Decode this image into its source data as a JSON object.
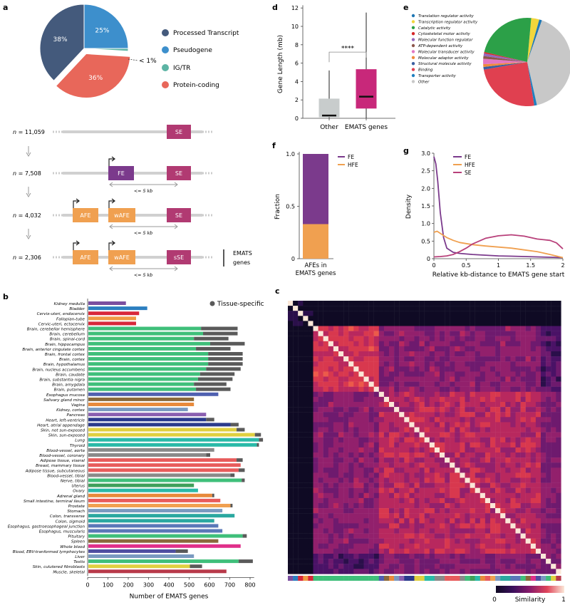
{
  "panels": {
    "a": "a",
    "b": "b",
    "c": "c",
    "d": "d",
    "e": "e",
    "f": "f",
    "g": "g"
  },
  "panel_a": {
    "pie": {
      "slices": [
        {
          "label": "Processed Transcript",
          "pct_text": "38%",
          "value": 38,
          "color": "#445a7c"
        },
        {
          "label": "Pseudogene",
          "pct_text": "25%",
          "value": 25,
          "color": "#3d8fcc"
        },
        {
          "label": "IG/TR",
          "pct_text": "< 1%",
          "value": 1,
          "color": "#5cb4a4"
        },
        {
          "label": "Protein-coding",
          "pct_text": "36%",
          "value": 36,
          "color": "#e8675a"
        }
      ]
    },
    "rows": [
      {
        "n": "11,059",
        "exons": [
          "SE"
        ]
      },
      {
        "n": "7,508",
        "exons": [
          "FE",
          "SE"
        ]
      },
      {
        "n": "4,032",
        "exons": [
          "AFE",
          "wAFE",
          "SE"
        ]
      },
      {
        "n": "2,306",
        "exons": [
          "AFE",
          "wAFE",
          "sSE"
        ]
      }
    ],
    "n_prefix": "n",
    "distance_label": "<= 5 kb",
    "emats_label_1": "EMATS",
    "emats_label_2": "genes"
  },
  "panel_b": {
    "chart_data": {
      "type": "bar",
      "orientation": "horizontal",
      "xlabel": "Number of EMATS genes",
      "xlim": [
        0,
        850
      ],
      "xticks": [
        "0",
        "100",
        "200",
        "300",
        "400",
        "500",
        "600",
        "700",
        "800"
      ],
      "legend": "Tissue-specific",
      "categories": [
        "Kidney medulla",
        "Bladder",
        "Cervix-uteri, endocervix",
        "Fallopian-tube",
        "Cervic-uteri, ectocervix",
        "Brain, cerebellar hemisphere",
        "Brain, cerebellum",
        "Brain, spinal-cord",
        "Brain, hippocampus",
        "Brain, anterior cingulate cortex",
        "Brain, frontal cortex",
        "Brain, cortex",
        "Brain, hypothalamus",
        "Brain, nucleus accumbens",
        "Brain, caudate",
        "Brain, substantia nigra",
        "Brain, amygdala",
        "Brain, putamen",
        "Esophagus mucosa",
        "Salivary gland minor",
        "Vagina",
        "Kidney, cortex",
        "Pancreas",
        "Heart, left-ventricle",
        "Heart, atrial appendage",
        "Skin, not sun-exposed",
        "Skin, sun-exposed",
        "Lung",
        "Thyroid",
        "Blood-vessel, aorta",
        "Blood-vessel, coronary",
        "Adipose tissue, viseral",
        "Breast, mammary tissue",
        "Adipose tissue, subcutaneous",
        "Blood-vessel, tibial",
        "Nerve, tibial",
        "Uterus",
        "Ovary",
        "Adrenal gland",
        "Small intestine, terminal ileum",
        "Prostate",
        "Stomach",
        "Colon, transverse",
        "Colon, sigmoid",
        "Esophagus, gastroesophageal junction",
        "Esophagus, muscularis",
        "Pituitary",
        "Spleen",
        "Whole blood",
        "Blood, EBV-tranformed lymphocytes",
        "Liver",
        "Testis",
        "Skin, culutered fibroblasts",
        "Muscle, skeletal"
      ],
      "totals": [
        185,
        290,
        250,
        235,
        235,
        735,
        735,
        690,
        770,
        700,
        760,
        760,
        760,
        750,
        720,
        710,
        680,
        700,
        640,
        520,
        520,
        490,
        580,
        620,
        740,
        770,
        850,
        860,
        840,
        620,
        600,
        760,
        750,
        770,
        720,
        770,
        520,
        540,
        620,
        650,
        710,
        660,
        720,
        620,
        640,
        660,
        780,
        640,
        750,
        490,
        520,
        810,
        560,
        680
      ],
      "tissue_specific": [
        0,
        0,
        0,
        0,
        0,
        180,
        170,
        170,
        170,
        170,
        170,
        170,
        170,
        170,
        170,
        170,
        160,
        170,
        0,
        0,
        0,
        0,
        0,
        40,
        40,
        40,
        30,
        20,
        10,
        0,
        20,
        30,
        0,
        30,
        20,
        15,
        0,
        0,
        10,
        0,
        10,
        0,
        0,
        0,
        0,
        0,
        20,
        0,
        0,
        60,
        0,
        70,
        60,
        0
      ]
    }
  },
  "panel_c": {
    "colorbar_label": "Similarity",
    "colorbar_min": "0",
    "colorbar_max": "1"
  },
  "panel_d": {
    "chart_data": {
      "type": "boxplot",
      "ylabel": "Gene Length (mb)",
      "ylim": [
        0,
        12
      ],
      "yticks": [
        "0",
        "2",
        "4",
        "6",
        "8",
        "10",
        "12"
      ],
      "categories": [
        "Other",
        "EMATS genes"
      ],
      "boxes": [
        {
          "min": 0,
          "q1": 0.15,
          "median": 0.3,
          "q3": 2.1,
          "max": 5.2
        },
        {
          "min": 0,
          "q1": 1.1,
          "median": 2.35,
          "q3": 5.3,
          "max": 11.5
        }
      ],
      "significance": "****"
    }
  },
  "panel_e": {
    "chart_data": {
      "type": "pie",
      "labels": [
        "Translation regulator activity",
        "Transcription regulator activity",
        "Catalytic activity",
        "Cytoskeletal motor activity",
        "Molecular function regulator",
        "ATP-dependent activity",
        "Molecular transducer activity",
        "Molecular adaptor activity",
        "Structural molecule activity",
        "Binding",
        "Transporter activity",
        "Other"
      ],
      "colors": [
        "#1f77b4",
        "#f1d63c",
        "#2ca048",
        "#d62728",
        "#9467bd",
        "#8c564b",
        "#e377c2",
        "#f08a3c",
        "#3a5fa0",
        "#e04050",
        "#1f80c0",
        "#c8c8c8"
      ],
      "values": [
        1,
        3,
        23,
        0.5,
        1,
        1,
        2,
        1,
        1,
        25,
        1,
        41.5
      ]
    }
  },
  "panel_f": {
    "chart_data": {
      "type": "stacked-bar",
      "ylabel": "Fraction",
      "ylim": [
        0,
        1
      ],
      "yticks": [
        "0",
        "0.5",
        "1.0"
      ],
      "category_1": "AFEs in",
      "category_2": "EMATS genes",
      "series": [
        {
          "name": "FE",
          "value": 0.67,
          "color": "#7b3a8c"
        },
        {
          "name": "HFE",
          "value": 0.33,
          "color": "#f0a050"
        }
      ]
    }
  },
  "panel_g": {
    "chart_data": {
      "type": "line",
      "xlabel": "Relative kb-distance to EMATS gene start",
      "ylabel": "Density",
      "xlim": [
        0,
        2
      ],
      "ylim": [
        0,
        3
      ],
      "xticks": [
        "0",
        "0.5",
        "1",
        "1.5",
        "2"
      ],
      "yticks": [
        "0",
        "0.5",
        "1.0",
        "1.5",
        "2.0",
        "2.5",
        "3.0"
      ],
      "series": [
        {
          "name": "FE",
          "color": "#7b3a8c",
          "x": [
            0,
            0.03,
            0.06,
            0.1,
            0.15,
            0.2,
            0.3,
            0.4,
            0.6,
            0.8,
            1,
            1.2,
            1.4,
            1.6,
            1.8,
            2
          ],
          "y": [
            2.9,
            2.7,
            2.2,
            1.3,
            0.6,
            0.3,
            0.18,
            0.15,
            0.12,
            0.1,
            0.08,
            0.07,
            0.06,
            0.05,
            0.04,
            0.03
          ]
        },
        {
          "name": "HFE",
          "color": "#f0a050",
          "x": [
            0,
            0.05,
            0.1,
            0.2,
            0.3,
            0.4,
            0.6,
            0.8,
            1,
            1.2,
            1.4,
            1.6,
            1.8,
            2
          ],
          "y": [
            0.75,
            0.78,
            0.72,
            0.6,
            0.52,
            0.46,
            0.4,
            0.36,
            0.33,
            0.3,
            0.25,
            0.2,
            0.12,
            0.03
          ]
        },
        {
          "name": "SE",
          "color": "#b8407a",
          "x": [
            0,
            0.1,
            0.2,
            0.3,
            0.4,
            0.5,
            0.6,
            0.8,
            1,
            1.2,
            1.4,
            1.6,
            1.8,
            1.9,
            2
          ],
          "y": [
            0.05,
            0.06,
            0.08,
            0.12,
            0.2,
            0.3,
            0.42,
            0.58,
            0.65,
            0.68,
            0.64,
            0.56,
            0.52,
            0.45,
            0.28
          ]
        }
      ]
    }
  }
}
